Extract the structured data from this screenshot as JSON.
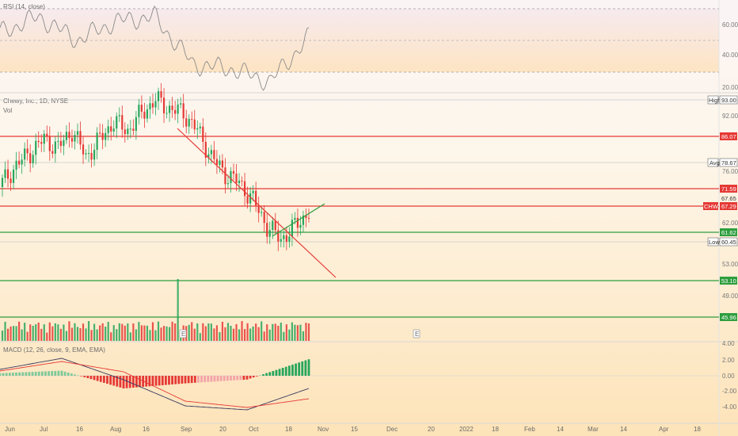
{
  "rsi": {
    "legend": "RSI (14, close)",
    "scale_ticks": [
      "60.00",
      "40.00",
      "20.00"
    ]
  },
  "main": {
    "legend_line1": "Chewy, Inc., 1D, NYSE",
    "legend_line2": "Vol",
    "price_ticks": [
      "92.00",
      "76.00",
      "62.00",
      "53.00",
      "49.00"
    ],
    "tags": [
      {
        "id": "high",
        "label": "High",
        "value": "93.00",
        "kind": "box"
      },
      {
        "id": "r1",
        "label": "",
        "value": "86.07",
        "kind": "red"
      },
      {
        "id": "avg",
        "label": "Avg",
        "value": "78.67",
        "kind": "box"
      },
      {
        "id": "r2",
        "label": "",
        "value": "71.59",
        "kind": "red"
      },
      {
        "id": "last",
        "label": "",
        "value": "67.65",
        "kind": "plain"
      },
      {
        "id": "chwy",
        "label": "CHWY",
        "value": "67.29",
        "kind": "red"
      },
      {
        "id": "s1",
        "label": "",
        "value": "61.62",
        "kind": "green"
      },
      {
        "id": "low",
        "label": "Low",
        "value": "60.45",
        "kind": "box"
      },
      {
        "id": "s2",
        "label": "",
        "value": "53.10",
        "kind": "green"
      },
      {
        "id": "s3",
        "label": "",
        "value": "45.96",
        "kind": "green"
      }
    ],
    "earnings_marker": "E"
  },
  "macd": {
    "legend": "MACD (12, 26, close, 9, EMA, EMA)",
    "scale_ticks": [
      "4.00",
      "2.00",
      "0.00",
      "-2.00",
      "-4.00"
    ]
  },
  "time_axis": [
    "Jun",
    "Jul",
    "16",
    "Aug",
    "16",
    "Sep",
    "20",
    "Oct",
    "18",
    "Nov",
    "15",
    "Dec",
    "20",
    "2022",
    "18",
    "Feb",
    "14",
    "Mar",
    "14",
    "Apr",
    "18"
  ],
  "colors": {
    "up": "#26a65b",
    "down": "#e53935",
    "resistance": "#e53935",
    "support": "#2e9e3e",
    "macd_line": "#3a3a60",
    "signal_line": "#e53935",
    "rsi_line": "#888888"
  },
  "chart_data": {
    "type": "candlestick",
    "title": "Chewy, Inc., 1D, NYSE",
    "ylim": [
      40,
      96
    ],
    "horizontal_levels": {
      "resistance": [
        86.07,
        71.59,
        67.29
      ],
      "support": [
        61.62,
        53.1,
        45.96
      ],
      "average": 78.67,
      "period_high": 93.0,
      "period_low": 60.45
    },
    "trendlines": [
      {
        "name": "",
        "color": "red",
        "points": [
          [
            "Sep 1",
            86.0
          ],
          [
            "Oct 25",
            54.0
          ]
        ]
      },
      {
        "name": "",
        "color": "green",
        "points": [
          [
            "Oct 12",
            60.5
          ],
          [
            "Oct 29",
            67.2
          ]
        ]
      }
    ],
    "close_path": [
      {
        "x": "May 25",
        "y": 74
      },
      {
        "x": "Jun 1",
        "y": 78
      },
      {
        "x": "Jun 8",
        "y": 81
      },
      {
        "x": "Jun 15",
        "y": 84
      },
      {
        "x": "Jun 22",
        "y": 82
      },
      {
        "x": "Jun 29",
        "y": 86
      },
      {
        "x": "Jul 6",
        "y": 80
      },
      {
        "x": "Jul 13",
        "y": 84
      },
      {
        "x": "Jul 20",
        "y": 88
      },
      {
        "x": "Jul 27",
        "y": 86
      },
      {
        "x": "Aug 3",
        "y": 90
      },
      {
        "x": "Aug 10",
        "y": 93
      },
      {
        "x": "Aug 17",
        "y": 91
      },
      {
        "x": "Aug 24",
        "y": 90
      },
      {
        "x": "Aug 31",
        "y": 86
      },
      {
        "x": "Sep 7",
        "y": 80
      },
      {
        "x": "Sep 14",
        "y": 76
      },
      {
        "x": "Sep 21",
        "y": 74
      },
      {
        "x": "Sep 28",
        "y": 70
      },
      {
        "x": "Oct 5",
        "y": 64
      },
      {
        "x": "Oct 12",
        "y": 61
      },
      {
        "x": "Oct 19",
        "y": 64
      },
      {
        "x": "Oct 26",
        "y": 67.3
      }
    ],
    "volume_spike": {
      "x": "Sep 1",
      "note": "earnings"
    },
    "rsi_series": [
      {
        "x": "May 25",
        "y": 55
      },
      {
        "x": "Jun 15",
        "y": 65
      },
      {
        "x": "Jul 6",
        "y": 50
      },
      {
        "x": "Jul 27",
        "y": 62
      },
      {
        "x": "Aug 17",
        "y": 65
      },
      {
        "x": "Sep 7",
        "y": 35
      },
      {
        "x": "Sep 28",
        "y": 32
      },
      {
        "x": "Oct 12",
        "y": 24
      },
      {
        "x": "Oct 26",
        "y": 52
      }
    ],
    "macd_series": [
      {
        "x": "Jul 1",
        "macd": 0.8,
        "signal": 0.6
      },
      {
        "x": "Aug 1",
        "macd": 2.2,
        "signal": 1.8
      },
      {
        "x": "Sep 1",
        "macd": -0.5,
        "signal": 0.5
      },
      {
        "x": "Oct 1",
        "macd": -3.8,
        "signal": -3.2
      },
      {
        "x": "Oct 15",
        "macd": -4.3,
        "signal": -4.0
      },
      {
        "x": "Oct 29",
        "macd": -1.6,
        "signal": -2.9
      }
    ]
  }
}
